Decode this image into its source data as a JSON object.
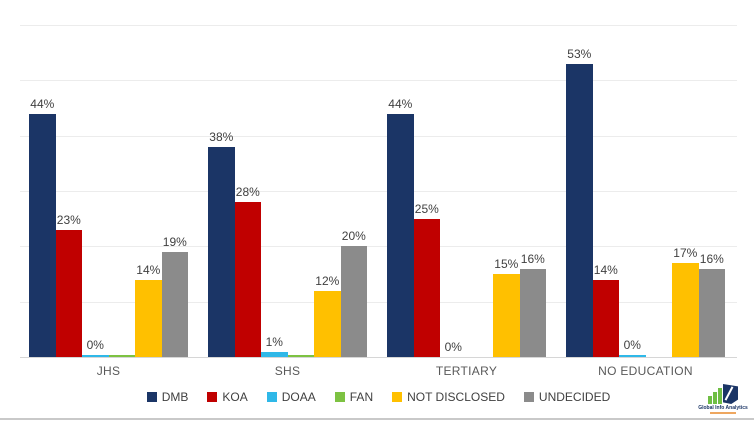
{
  "chart_data": {
    "type": "bar",
    "title": "",
    "xlabel": "",
    "ylabel": "",
    "categories": [
      "JHS",
      "SHS",
      "TERTIARY",
      "NO EDUCATION"
    ],
    "series": [
      {
        "name": "DMB",
        "color": "#1b3566",
        "values": [
          44,
          38,
          44,
          53
        ],
        "labels": [
          "44%",
          "38%",
          "44%",
          "53%"
        ]
      },
      {
        "name": "KOA",
        "color": "#c00000",
        "values": [
          23,
          28,
          25,
          14
        ],
        "labels": [
          "23%",
          "28%",
          "25%",
          "14%"
        ]
      },
      {
        "name": "DOAA",
        "color": "#2fb8e8",
        "values": [
          0.3,
          1,
          0,
          0.3
        ],
        "labels": [
          "0%",
          "1%",
          "0%",
          "0%"
        ]
      },
      {
        "name": "FAN",
        "color": "#7dc242",
        "values": [
          0.4,
          0.4,
          0,
          0
        ],
        "labels": [
          "",
          "",
          "",
          ""
        ]
      },
      {
        "name": "NOT DISCLOSED",
        "color": "#ffc000",
        "values": [
          14,
          12,
          15,
          17
        ],
        "labels": [
          "14%",
          "12%",
          "15%",
          "17%"
        ]
      },
      {
        "name": "UNDECIDED",
        "color": "#8b8b8b",
        "values": [
          19,
          20,
          16,
          16
        ],
        "labels": [
          "19%",
          "20%",
          "16%",
          "16%"
        ]
      }
    ],
    "ylim": [
      0,
      60
    ],
    "gridline_step": 10,
    "grid": true,
    "y_axis_labels_shown": false,
    "legend_position": "bottom"
  },
  "branding": {
    "name": "Global Info Analytics"
  }
}
